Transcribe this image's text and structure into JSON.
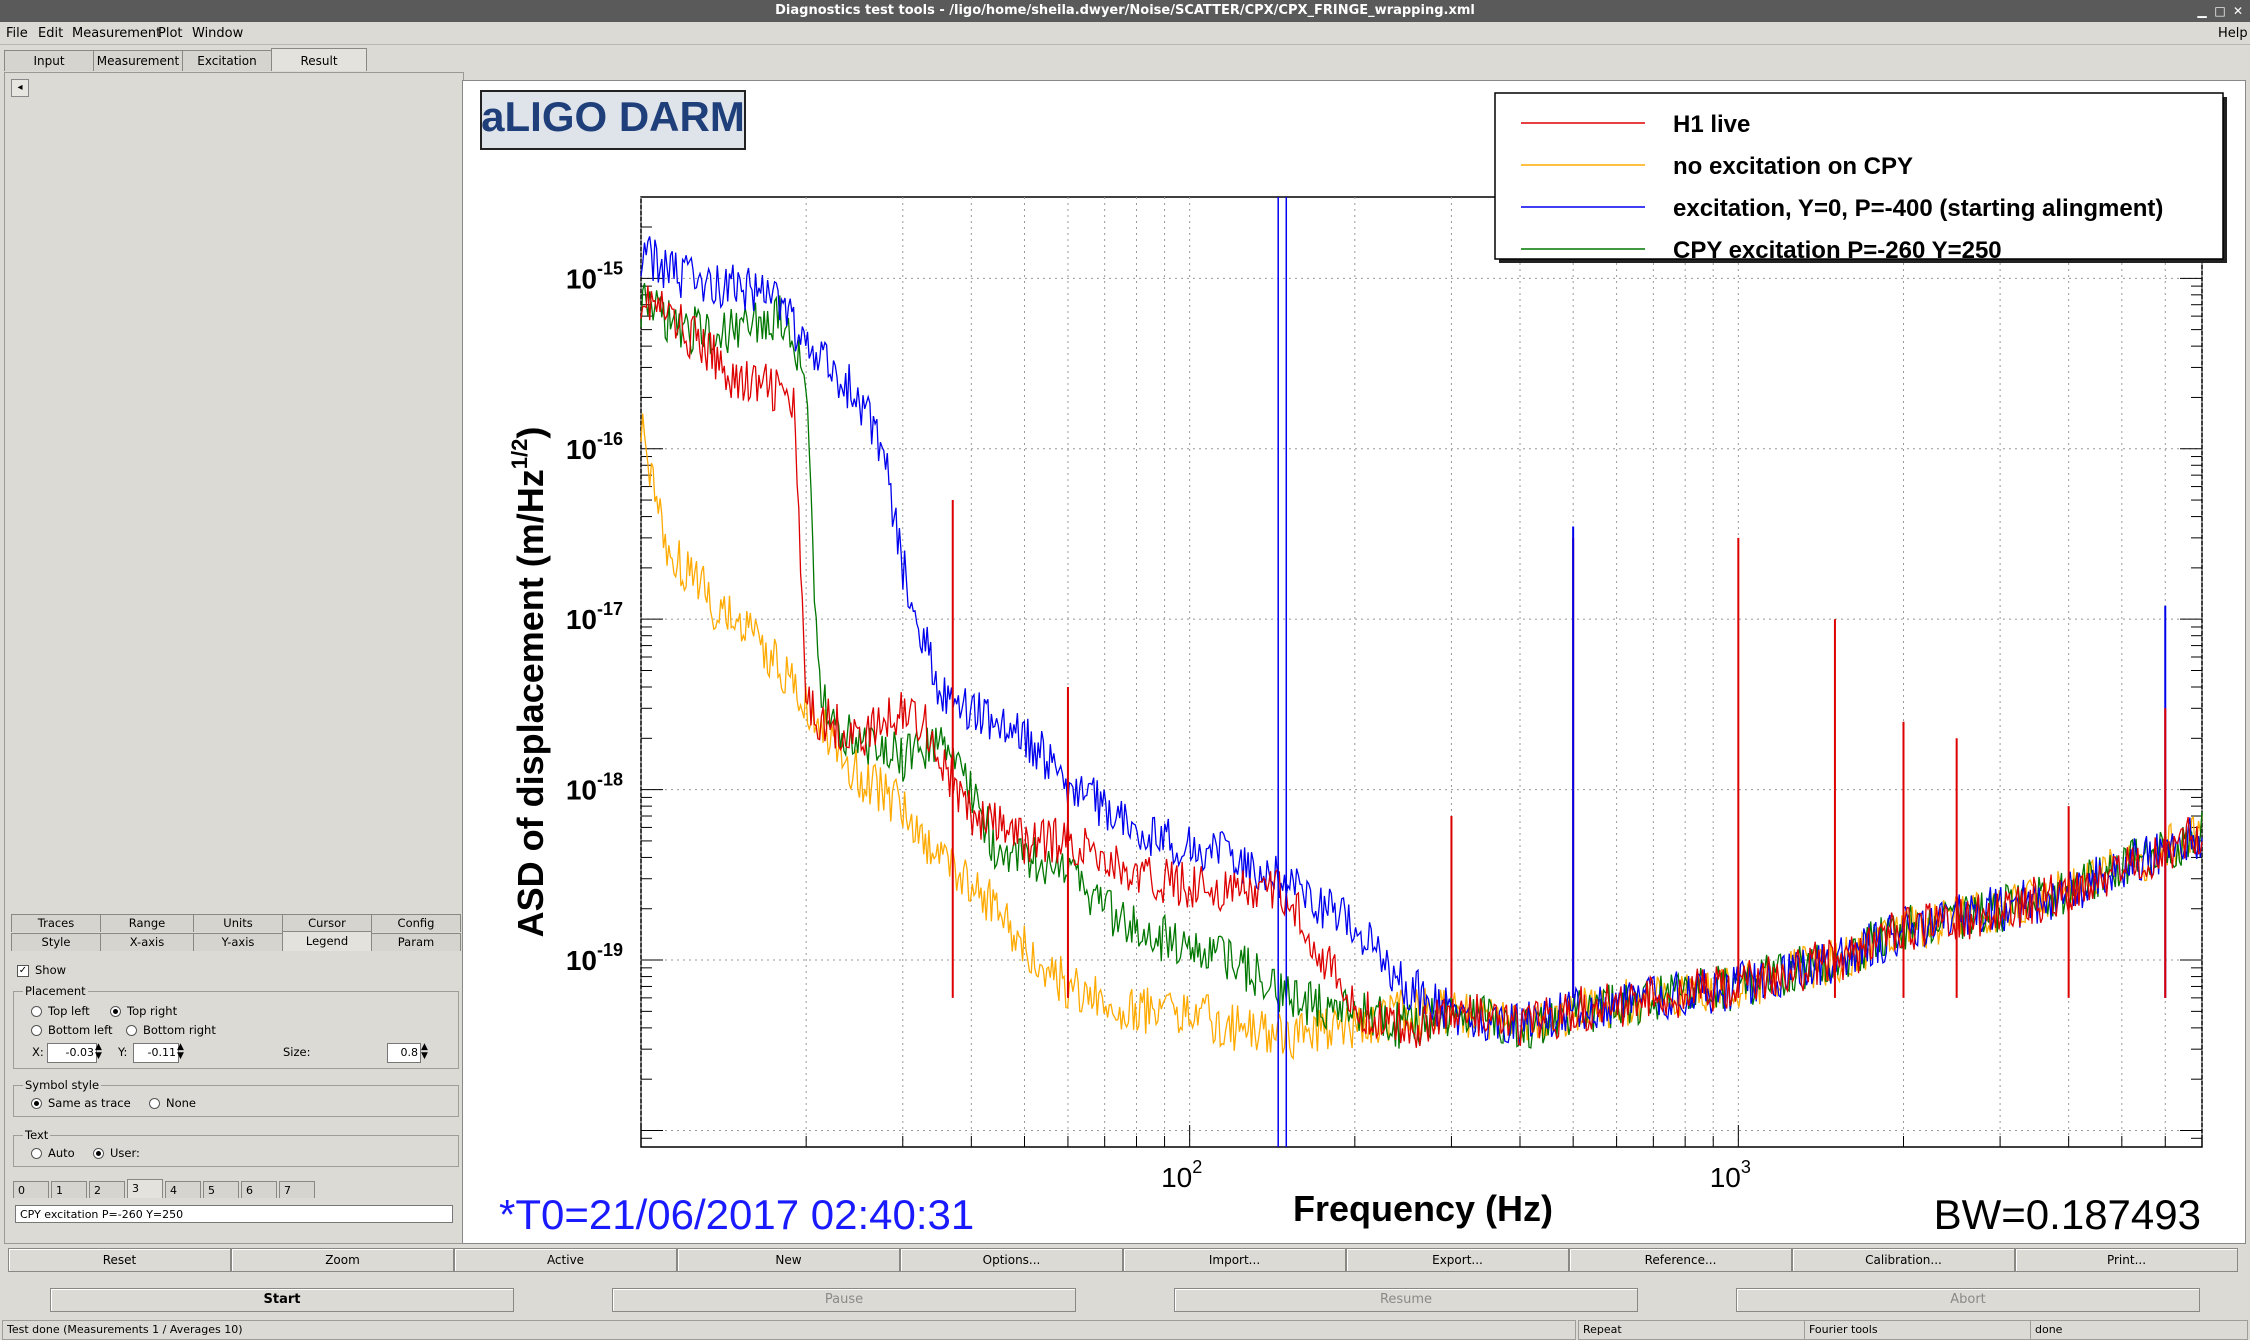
{
  "window": {
    "title": "Diagnostics test tools - /ligo/home/sheila.dwyer/Noise/SCATTER/CPX/CPX_FRINGE_wrapping.xml"
  },
  "menubar": {
    "items": [
      "File",
      "Edit",
      "Measurement",
      "Plot",
      "Window"
    ],
    "help": "Help"
  },
  "tabs": [
    "Input",
    "Measurement",
    "Excitation",
    "Result"
  ],
  "active_tab": "Result",
  "options_tabs": {
    "row1": [
      "Traces",
      "Range",
      "Units",
      "Cursor",
      "Config"
    ],
    "row2": [
      "Style",
      "X-axis",
      "Y-axis",
      "Legend",
      "Param"
    ]
  },
  "legend_panel": {
    "show_label": "Show",
    "placement": {
      "title": "Placement",
      "top_left": "Top left",
      "top_right": "Top right",
      "bottom_left": "Bottom left",
      "bottom_right": "Bottom right",
      "selected": "Top right"
    },
    "x_label": "X:",
    "x_value": "-0.03",
    "y_label": "Y:",
    "y_value": "-0.11",
    "size_label": "Size:",
    "size_value": "0.8",
    "symbol_style": {
      "title": "Symbol style",
      "same": "Same as trace",
      "none": "None"
    },
    "text": {
      "title": "Text",
      "auto": "Auto",
      "user": "User:"
    },
    "trace_tabs": [
      "0",
      "1",
      "2",
      "3",
      "4",
      "5",
      "6",
      "7"
    ],
    "active_trace_tab": "3",
    "text_value": "CPY  excitation P=-260 Y=250"
  },
  "plot": {
    "badge": "aLIGO DARM",
    "t0": "*T0=21/06/2017 02:40:31",
    "bw": "BW=0.187493",
    "y_tick_base": "10",
    "y_tick_exponents": [
      "-15",
      "-16",
      "-17",
      "-18",
      "-19"
    ],
    "x_tick_exponents": [
      "2",
      "3"
    ]
  },
  "toolbar": [
    "Reset",
    "Zoom",
    "Active",
    "New",
    "Options...",
    "Import...",
    "Export...",
    "Reference...",
    "Calibration...",
    "Print..."
  ],
  "run_buttons": [
    "Start",
    "Pause",
    "Resume",
    "Abort"
  ],
  "status": {
    "main": "Test done (Measurements 1 / Averages 10)",
    "repeat": "Repeat",
    "tools": "Fourier tools",
    "state": "done"
  },
  "colors": {
    "h1_live": "#dd0000",
    "no_excitation": "#ffaa00",
    "excitation_p400": "#0000ee",
    "cpy_excitation": "#007700",
    "badge_text": "#1f3f7a",
    "t0_text": "#1a1aff"
  },
  "chart_data": {
    "type": "line",
    "xlabel": "Frequency (Hz)",
    "ylabel": "ASD of displacement (m/Hz",
    "ylabel_sup": "1/2",
    "ylabel_end": ")",
    "x_scale": "log",
    "y_scale": "log",
    "xlim": [
      10,
      7000
    ],
    "ylim": [
      8e-21,
      3e-15
    ],
    "grid": true,
    "legend_position": "top-right",
    "series": [
      {
        "name": "H1 live",
        "color": "#dd0000",
        "x": [
          10,
          12,
          15,
          18,
          19,
          20,
          22,
          25,
          28,
          30,
          33,
          35,
          40,
          45,
          50,
          60,
          70,
          80,
          100,
          120,
          150,
          200,
          250,
          300,
          400,
          500,
          700,
          1000,
          1500,
          2000,
          3000,
          4000,
          5000,
          6000,
          7000
        ],
        "y": [
          8e-16,
          5e-16,
          2.5e-16,
          2.2e-16,
          1.7e-16,
          3e-18,
          2.5e-18,
          2e-18,
          2.5e-18,
          3e-18,
          2.5e-18,
          1.5e-18,
          7e-19,
          6e-19,
          5e-19,
          5e-19,
          4e-19,
          3e-19,
          2.8e-19,
          2.5e-19,
          2.5e-19,
          5e-20,
          4e-20,
          5e-20,
          4e-20,
          5e-20,
          6e-20,
          7e-20,
          1e-19,
          1.5e-19,
          2e-19,
          2.5e-19,
          3.5e-19,
          4.5e-19,
          5.5e-19
        ]
      },
      {
        "name": "no excitation on CPY",
        "color": "#ffaa00",
        "x": [
          10,
          11,
          12,
          13,
          14,
          15,
          16,
          18,
          20,
          22,
          25,
          30,
          35,
          40,
          50,
          60,
          80,
          100,
          120,
          150,
          180,
          200,
          250,
          300,
          400,
          500,
          700,
          1000,
          1500,
          2000,
          3000,
          4000,
          5000,
          6000,
          7000
        ],
        "y": [
          1.5e-16,
          3e-17,
          2e-17,
          1.5e-17,
          1e-17,
          1e-17,
          8e-18,
          5e-18,
          3e-18,
          2e-18,
          1.2e-18,
          8e-19,
          4e-19,
          3e-19,
          1.2e-19,
          7e-20,
          5e-20,
          5e-20,
          4e-20,
          3.5e-20,
          4e-20,
          4e-20,
          5e-20,
          5e-20,
          4e-20,
          5e-20,
          6e-20,
          7e-20,
          1e-19,
          1.5e-19,
          2e-19,
          2.5e-19,
          3.5e-19,
          4.5e-19,
          5.5e-19
        ]
      },
      {
        "name": "excitation, Y=0, P=-400 (starting alingment)",
        "color": "#0000ee",
        "x": [
          10,
          12,
          15,
          18,
          20,
          22,
          25,
          28,
          30,
          32,
          35,
          40,
          45,
          50,
          55,
          60,
          70,
          80,
          90,
          100,
          120,
          150,
          200,
          250,
          300,
          400,
          500,
          700,
          1000,
          1500,
          2000,
          3000,
          4000,
          5000,
          6000,
          7000
        ],
        "y": [
          1.4e-15,
          1e-15,
          9e-16,
          7e-16,
          4e-16,
          3e-16,
          2e-16,
          8e-17,
          2e-17,
          1e-17,
          4e-18,
          3e-18,
          2.5e-18,
          2e-18,
          1.5e-18,
          1e-18,
          8e-19,
          6e-19,
          5e-19,
          4.5e-19,
          4e-19,
          3e-19,
          1.5e-19,
          7e-20,
          5e-20,
          4e-20,
          5e-20,
          6e-20,
          7e-20,
          1e-19,
          1.5e-19,
          2e-19,
          2.5e-19,
          3.5e-19,
          4.5e-19,
          5.5e-19
        ]
      },
      {
        "name": "CPY  excitation P=-260 Y=250",
        "color": "#007700",
        "x": [
          10,
          12,
          15,
          18,
          20,
          21,
          22,
          25,
          30,
          35,
          40,
          45,
          50,
          60,
          70,
          80,
          100,
          120,
          150,
          200,
          250,
          300,
          400,
          500,
          700,
          1000,
          1500,
          2000,
          3000,
          4000,
          5000,
          6000,
          7000
        ],
        "y": [
          7e-16,
          5e-16,
          5e-16,
          6e-16,
          3e-16,
          5e-18,
          2.5e-18,
          2e-18,
          1.5e-18,
          2e-18,
          1e-18,
          4e-19,
          4e-19,
          3.5e-19,
          2e-19,
          1.5e-19,
          1.2e-19,
          1e-19,
          6e-20,
          5e-20,
          4e-20,
          5e-20,
          4e-20,
          5e-20,
          6e-20,
          7e-20,
          1e-19,
          1.5e-19,
          2e-19,
          2.5e-19,
          3.5e-19,
          4.5e-19,
          5.5e-19
        ]
      }
    ],
    "peaks": [
      {
        "x": 37,
        "y": 5e-17,
        "color": "#dd0000"
      },
      {
        "x": 60,
        "y": 4e-18,
        "color": "#dd0000"
      },
      {
        "x": 300,
        "y": 7e-19,
        "color": "#dd0000"
      },
      {
        "x": 500,
        "y": 3e-17,
        "color": "#dd0000"
      },
      {
        "x": 500,
        "y": 3.5e-17,
        "color": "#0000ee"
      },
      {
        "x": 1000,
        "y": 3e-17,
        "color": "#dd0000"
      },
      {
        "x": 1500,
        "y": 1e-17,
        "color": "#dd0000"
      },
      {
        "x": 2000,
        "y": 2.5e-18,
        "color": "#dd0000"
      },
      {
        "x": 2500,
        "y": 2e-18,
        "color": "#dd0000"
      },
      {
        "x": 4000,
        "y": 8e-19,
        "color": "#dd0000"
      },
      {
        "x": 6000,
        "y": 1.2e-17,
        "color": "#0000ee"
      },
      {
        "x": 6000,
        "y": 3e-18,
        "color": "#dd0000"
      }
    ],
    "vlines": [
      {
        "x": 145,
        "color": "#0000ee"
      },
      {
        "x": 150,
        "color": "#0000ee"
      }
    ]
  }
}
